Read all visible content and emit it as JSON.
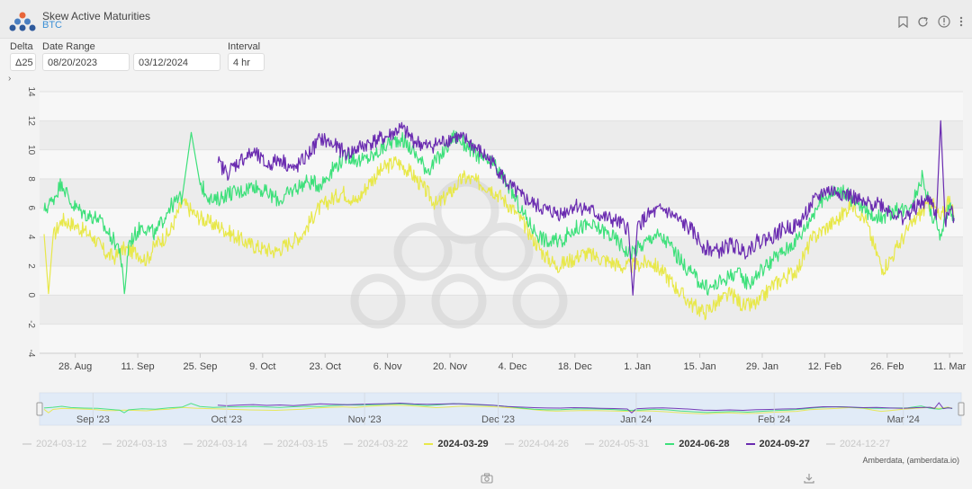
{
  "header": {
    "title": "Skew Active Maturities",
    "subtitle": "BTC",
    "icons": [
      "bookmark-icon",
      "refresh-icon",
      "info-icon",
      "more-vert-icon"
    ]
  },
  "controls": {
    "delta_label": "Delta",
    "delta_value": "Δ25",
    "date_range_label": "Date Range",
    "date_start": "08/20/2023",
    "date_end": "03/12/2024",
    "interval_label": "Interval",
    "interval_value": "4 hr"
  },
  "credit": "Amberdata, (amberdata.io)",
  "chart_data": {
    "type": "line",
    "title": "",
    "xlabel": "",
    "ylabel": "",
    "ylim": [
      -4,
      14
    ],
    "yticks": [
      "-4",
      "-2",
      "0",
      "2",
      "4",
      "6",
      "8",
      "10",
      "12",
      "14"
    ],
    "xlim": [
      "2023-08-20",
      "2024-03-14"
    ],
    "xticks": [
      {
        "date": "2023-08-28",
        "label": "28. Aug"
      },
      {
        "date": "2023-09-11",
        "label": "11. Sep"
      },
      {
        "date": "2023-09-25",
        "label": "25. Sep"
      },
      {
        "date": "2023-10-09",
        "label": "9. Oct"
      },
      {
        "date": "2023-10-23",
        "label": "23. Oct"
      },
      {
        "date": "2023-11-06",
        "label": "6. Nov"
      },
      {
        "date": "2023-11-20",
        "label": "20. Nov"
      },
      {
        "date": "2023-12-04",
        "label": "4. Dec"
      },
      {
        "date": "2023-12-18",
        "label": "18. Dec"
      },
      {
        "date": "2024-01-01",
        "label": "1. Jan"
      },
      {
        "date": "2024-01-15",
        "label": "15. Jan"
      },
      {
        "date": "2024-01-29",
        "label": "29. Jan"
      },
      {
        "date": "2024-02-12",
        "label": "12. Feb"
      },
      {
        "date": "2024-02-26",
        "label": "26. Feb"
      },
      {
        "date": "2024-03-11",
        "label": "11. Mar"
      }
    ],
    "navigator_ticks": [
      {
        "date": "2023-09-01",
        "label": "Sep '23"
      },
      {
        "date": "2023-10-01",
        "label": "Oct '23"
      },
      {
        "date": "2023-11-01",
        "label": "Nov '23"
      },
      {
        "date": "2023-12-01",
        "label": "Dec '23"
      },
      {
        "date": "2024-01-01",
        "label": "Jan '24"
      },
      {
        "date": "2024-02-01",
        "label": "Feb '24"
      },
      {
        "date": "2024-03-01",
        "label": "Mar '24"
      }
    ],
    "grid": true,
    "legend_position": "bottom",
    "legend": [
      {
        "name": "2024-03-12",
        "visible": false
      },
      {
        "name": "2024-03-13",
        "visible": false
      },
      {
        "name": "2024-03-14",
        "visible": false
      },
      {
        "name": "2024-03-15",
        "visible": false
      },
      {
        "name": "2024-03-22",
        "visible": false
      },
      {
        "name": "2024-03-29",
        "visible": true,
        "color": "#e8e84a"
      },
      {
        "name": "2024-04-26",
        "visible": false
      },
      {
        "name": "2024-05-31",
        "visible": false
      },
      {
        "name": "2024-06-28",
        "visible": true,
        "color": "#3de07a"
      },
      {
        "name": "2024-09-27",
        "visible": true,
        "color": "#6a2bb0"
      },
      {
        "name": "2024-12-27",
        "visible": false
      }
    ],
    "series": [
      {
        "name": "2024-03-29",
        "color": "#e8e84a",
        "points": [
          [
            "2023-08-21",
            4.2
          ],
          [
            "2023-08-22",
            0.1
          ],
          [
            "2023-08-23",
            4.0
          ],
          [
            "2023-08-25",
            5.2
          ],
          [
            "2023-08-28",
            4.8
          ],
          [
            "2023-09-01",
            4.0
          ],
          [
            "2023-09-04",
            2.8
          ],
          [
            "2023-09-06",
            2.6
          ],
          [
            "2023-09-08",
            3.2
          ],
          [
            "2023-09-11",
            2.9
          ],
          [
            "2023-09-13",
            2.4
          ],
          [
            "2023-09-15",
            3.5
          ],
          [
            "2023-09-18",
            4.2
          ],
          [
            "2023-09-21",
            6.4
          ],
          [
            "2023-09-24",
            5.5
          ],
          [
            "2023-09-27",
            5.0
          ],
          [
            "2023-09-30",
            4.6
          ],
          [
            "2023-10-03",
            4.0
          ],
          [
            "2023-10-06",
            3.5
          ],
          [
            "2023-10-09",
            3.2
          ],
          [
            "2023-10-12",
            3.0
          ],
          [
            "2023-10-15",
            3.6
          ],
          [
            "2023-10-18",
            4.2
          ],
          [
            "2023-10-21",
            5.8
          ],
          [
            "2023-10-24",
            6.5
          ],
          [
            "2023-10-27",
            7.1
          ],
          [
            "2023-10-30",
            6.4
          ],
          [
            "2023-11-02",
            7.8
          ],
          [
            "2023-11-05",
            8.7
          ],
          [
            "2023-11-08",
            9.2
          ],
          [
            "2023-11-11",
            8.5
          ],
          [
            "2023-11-14",
            7.4
          ],
          [
            "2023-11-17",
            6.2
          ],
          [
            "2023-11-20",
            7.0
          ],
          [
            "2023-11-23",
            8.1
          ],
          [
            "2023-11-26",
            7.8
          ],
          [
            "2023-11-29",
            7.4
          ],
          [
            "2023-12-02",
            6.6
          ],
          [
            "2023-12-05",
            5.6
          ],
          [
            "2023-12-08",
            4.2
          ],
          [
            "2023-12-11",
            2.8
          ],
          [
            "2023-12-14",
            2.0
          ],
          [
            "2023-12-17",
            2.4
          ],
          [
            "2023-12-20",
            2.9
          ],
          [
            "2023-12-23",
            2.6
          ],
          [
            "2023-12-26",
            2.3
          ],
          [
            "2023-12-29",
            1.9
          ],
          [
            "2024-01-01",
            2.1
          ],
          [
            "2024-01-04",
            2.3
          ],
          [
            "2024-01-07",
            1.5
          ],
          [
            "2024-01-10",
            0.4
          ],
          [
            "2024-01-13",
            -0.6
          ],
          [
            "2024-01-16",
            -1.2
          ],
          [
            "2024-01-19",
            -0.5
          ],
          [
            "2024-01-22",
            0.1
          ],
          [
            "2024-01-25",
            -0.8
          ],
          [
            "2024-01-28",
            -0.6
          ],
          [
            "2024-01-31",
            0.6
          ],
          [
            "2024-02-03",
            1.2
          ],
          [
            "2024-02-06",
            1.8
          ],
          [
            "2024-02-09",
            3.8
          ],
          [
            "2024-02-12",
            4.6
          ],
          [
            "2024-02-15",
            5.2
          ],
          [
            "2024-02-18",
            6.3
          ],
          [
            "2024-02-21",
            5.3
          ],
          [
            "2024-02-23",
            3.4
          ],
          [
            "2024-02-25",
            1.8
          ],
          [
            "2024-02-27",
            2.6
          ],
          [
            "2024-03-01",
            4.2
          ],
          [
            "2024-03-04",
            5.5
          ],
          [
            "2024-03-07",
            6.4
          ],
          [
            "2024-03-09",
            5.2
          ],
          [
            "2024-03-11",
            6.8
          ],
          [
            "2024-03-12",
            5.4
          ]
        ]
      },
      {
        "name": "2024-06-28",
        "color": "#3de07a",
        "points": [
          [
            "2023-08-21",
            5.8
          ],
          [
            "2023-08-23",
            6.6
          ],
          [
            "2023-08-25",
            7.8
          ],
          [
            "2023-08-27",
            6.3
          ],
          [
            "2023-08-30",
            5.6
          ],
          [
            "2023-09-02",
            5.3
          ],
          [
            "2023-09-05",
            4.0
          ],
          [
            "2023-09-07",
            3.2
          ],
          [
            "2023-09-08",
            0.1
          ],
          [
            "2023-09-09",
            3.6
          ],
          [
            "2023-09-12",
            4.8
          ],
          [
            "2023-09-15",
            4.2
          ],
          [
            "2023-09-18",
            6.0
          ],
          [
            "2023-09-21",
            6.8
          ],
          [
            "2023-09-23",
            11.2
          ],
          [
            "2023-09-25",
            7.6
          ],
          [
            "2023-09-28",
            6.4
          ],
          [
            "2023-10-01",
            7.0
          ],
          [
            "2023-10-04",
            7.1
          ],
          [
            "2023-10-07",
            7.6
          ],
          [
            "2023-10-10",
            7.0
          ],
          [
            "2023-10-13",
            6.5
          ],
          [
            "2023-10-16",
            7.3
          ],
          [
            "2023-10-19",
            7.8
          ],
          [
            "2023-10-22",
            7.6
          ],
          [
            "2023-10-25",
            8.8
          ],
          [
            "2023-10-28",
            9.6
          ],
          [
            "2023-10-31",
            9.2
          ],
          [
            "2023-11-03",
            9.6
          ],
          [
            "2023-11-06",
            10.4
          ],
          [
            "2023-11-09",
            10.8
          ],
          [
            "2023-11-12",
            9.8
          ],
          [
            "2023-11-15",
            8.6
          ],
          [
            "2023-11-18",
            9.6
          ],
          [
            "2023-11-21",
            11.0
          ],
          [
            "2023-11-24",
            10.2
          ],
          [
            "2023-11-27",
            9.4
          ],
          [
            "2023-11-30",
            8.9
          ],
          [
            "2023-12-03",
            7.6
          ],
          [
            "2023-12-06",
            5.8
          ],
          [
            "2023-12-09",
            4.4
          ],
          [
            "2023-12-12",
            3.6
          ],
          [
            "2023-12-15",
            3.8
          ],
          [
            "2023-12-18",
            4.6
          ],
          [
            "2023-12-21",
            4.8
          ],
          [
            "2023-12-24",
            4.5
          ],
          [
            "2023-12-27",
            3.9
          ],
          [
            "2023-12-30",
            2.9
          ],
          [
            "2024-01-02",
            3.4
          ],
          [
            "2024-01-05",
            4.2
          ],
          [
            "2024-01-08",
            3.6
          ],
          [
            "2024-01-11",
            2.2
          ],
          [
            "2024-01-14",
            1.2
          ],
          [
            "2024-01-17",
            0.4
          ],
          [
            "2024-01-20",
            1.0
          ],
          [
            "2024-01-23",
            1.6
          ],
          [
            "2024-01-26",
            0.8
          ],
          [
            "2024-01-29",
            1.8
          ],
          [
            "2024-02-01",
            2.6
          ],
          [
            "2024-02-04",
            3.3
          ],
          [
            "2024-02-07",
            4.3
          ],
          [
            "2024-02-10",
            6.0
          ],
          [
            "2024-02-13",
            7.0
          ],
          [
            "2024-02-16",
            7.2
          ],
          [
            "2024-02-19",
            6.3
          ],
          [
            "2024-02-22",
            5.6
          ],
          [
            "2024-02-25",
            5.4
          ],
          [
            "2024-02-28",
            5.8
          ],
          [
            "2024-03-02",
            6.0
          ],
          [
            "2024-03-05",
            8.2
          ],
          [
            "2024-03-07",
            5.4
          ],
          [
            "2024-03-09",
            4.2
          ],
          [
            "2024-03-11",
            6.2
          ],
          [
            "2024-03-12",
            5.1
          ]
        ]
      },
      {
        "name": "2024-09-27",
        "color": "#6a2bb0",
        "points": [
          [
            "2023-09-29",
            9.1
          ],
          [
            "2023-10-01",
            8.4
          ],
          [
            "2023-10-04",
            9.3
          ],
          [
            "2023-10-07",
            9.8
          ],
          [
            "2023-10-10",
            8.9
          ],
          [
            "2023-10-13",
            9.4
          ],
          [
            "2023-10-16",
            8.6
          ],
          [
            "2023-10-19",
            9.6
          ],
          [
            "2023-10-22",
            10.8
          ],
          [
            "2023-10-25",
            10.3
          ],
          [
            "2023-10-28",
            9.7
          ],
          [
            "2023-10-31",
            10.2
          ],
          [
            "2023-11-03",
            10.6
          ],
          [
            "2023-11-06",
            10.9
          ],
          [
            "2023-11-09",
            11.5
          ],
          [
            "2023-11-12",
            10.6
          ],
          [
            "2023-11-15",
            10.2
          ],
          [
            "2023-11-18",
            10.5
          ],
          [
            "2023-11-21",
            10.9
          ],
          [
            "2023-11-24",
            10.6
          ],
          [
            "2023-11-27",
            9.8
          ],
          [
            "2023-11-30",
            9.0
          ],
          [
            "2023-12-03",
            7.6
          ],
          [
            "2023-12-06",
            6.8
          ],
          [
            "2023-12-09",
            6.2
          ],
          [
            "2023-12-12",
            5.8
          ],
          [
            "2023-12-15",
            5.6
          ],
          [
            "2023-12-18",
            6.2
          ],
          [
            "2023-12-21",
            5.9
          ],
          [
            "2023-12-24",
            5.4
          ],
          [
            "2023-12-27",
            5.1
          ],
          [
            "2023-12-30",
            4.6
          ],
          [
            "2023-12-31",
            0.0
          ],
          [
            "2024-01-01",
            4.8
          ],
          [
            "2024-01-04",
            5.6
          ],
          [
            "2024-01-07",
            5.9
          ],
          [
            "2024-01-10",
            5.2
          ],
          [
            "2024-01-13",
            4.5
          ],
          [
            "2024-01-16",
            3.3
          ],
          [
            "2024-01-19",
            3.0
          ],
          [
            "2024-01-22",
            3.5
          ],
          [
            "2024-01-25",
            3.0
          ],
          [
            "2024-01-28",
            3.7
          ],
          [
            "2024-01-31",
            4.0
          ],
          [
            "2024-02-03",
            4.6
          ],
          [
            "2024-02-06",
            4.8
          ],
          [
            "2024-02-09",
            6.2
          ],
          [
            "2024-02-12",
            7.2
          ],
          [
            "2024-02-15",
            7.1
          ],
          [
            "2024-02-18",
            6.8
          ],
          [
            "2024-02-21",
            6.2
          ],
          [
            "2024-02-24",
            6.4
          ],
          [
            "2024-02-27",
            5.7
          ],
          [
            "2024-03-01",
            5.3
          ],
          [
            "2024-03-04",
            6.2
          ],
          [
            "2024-03-07",
            6.6
          ],
          [
            "2024-03-08",
            5.2
          ],
          [
            "2024-03-09",
            12.0
          ],
          [
            "2024-03-10",
            5.0
          ],
          [
            "2024-03-11",
            5.9
          ],
          [
            "2024-03-12",
            5.3
          ]
        ]
      }
    ]
  }
}
